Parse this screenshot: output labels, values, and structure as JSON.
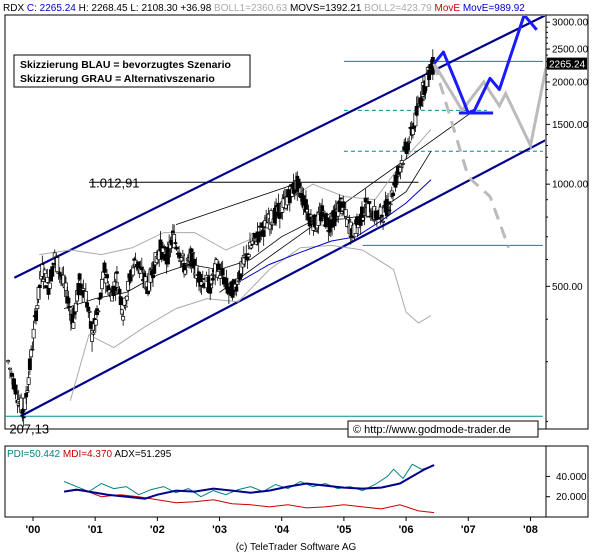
{
  "header": [
    {
      "text": "RDX",
      "color": "#000000"
    },
    {
      "text": "C: 2265.24",
      "color": "#0000cc"
    },
    {
      "text": "H: 2268.45",
      "color": "#000000"
    },
    {
      "text": "L: 2108.30",
      "color": "#000000"
    },
    {
      "text": "+36.98",
      "color": "#000000"
    },
    {
      "text": "BOLL1=2360.63",
      "color": "#aaaaaa"
    },
    {
      "text": "MOVS=1392.21",
      "color": "#000000"
    },
    {
      "text": "BOLL2=423.79",
      "color": "#aaaaaa"
    },
    {
      "text": "MovE",
      "color": "#cc0000"
    },
    {
      "text": "MovE=989.92",
      "color": "#0000cc"
    }
  ],
  "legend_box": {
    "line1": "Skizzierung BLAU = bevorzugtes Szenario",
    "line2": "Skizzierung GRAU = Alternativszenario"
  },
  "watermark": "© http://www.godmode-trader.de",
  "footer": "(c) TeleTrader Software AG",
  "indicator_header": [
    {
      "text": "PDI=50.442",
      "color": "#008080"
    },
    {
      "text": "MDI=4.370",
      "color": "#cc0000"
    },
    {
      "text": "ADX=51.295",
      "color": "#000000"
    }
  ],
  "colors": {
    "channel": "#00008b",
    "scenario_blue": "#1a1aff",
    "scenario_gray": "#bbbbbb",
    "teal_line": "#008b8b",
    "boll": "#aaaaaa",
    "mov_blue": "#0000cc",
    "pdi": "#008080",
    "mdi": "#cc0000",
    "adx": "#00008b"
  },
  "chart_data": [
    {
      "type": "candlestick",
      "title": "RDX",
      "y_scale": "log",
      "ylim": [
        190,
        3150
      ],
      "x_range": [
        1999.55,
        2008.25
      ],
      "y_ticks": [
        {
          "v": 3000,
          "label": "3000.00"
        },
        {
          "v": 2500,
          "label": "2500.00"
        },
        {
          "v": 2000,
          "label": "2000.00"
        },
        {
          "v": 1500,
          "label": "1500.00"
        },
        {
          "v": 1000,
          "label": "1000.00"
        },
        {
          "v": 500,
          "label": "500.00"
        }
      ],
      "x_ticks": [
        {
          "v": 2000,
          "label": "'00"
        },
        {
          "v": 2001,
          "label": "'01"
        },
        {
          "v": 2002,
          "label": "'02"
        },
        {
          "v": 2003,
          "label": "'03"
        },
        {
          "v": 2004,
          "label": "'04"
        },
        {
          "v": 2005,
          "label": "'05"
        },
        {
          "v": 2006,
          "label": "'06"
        },
        {
          "v": 2007,
          "label": "'07"
        },
        {
          "v": 2008,
          "label": "'08"
        }
      ],
      "last_price_label": "2265.24",
      "annotations": [
        {
          "text": "1.012,91",
          "x": 2000.9,
          "y": 1012.91
        },
        {
          "text": "207,13",
          "x": 1999.62,
          "y": 207.13
        }
      ],
      "price_path": [
        [
          1999.6,
          300
        ],
        [
          1999.75,
          240
        ],
        [
          1999.85,
          210
        ],
        [
          1999.95,
          290
        ],
        [
          2000.05,
          420
        ],
        [
          2000.15,
          560
        ],
        [
          2000.25,
          500
        ],
        [
          2000.35,
          610
        ],
        [
          2000.45,
          540
        ],
        [
          2000.55,
          470
        ],
        [
          2000.65,
          390
        ],
        [
          2000.75,
          520
        ],
        [
          2000.85,
          470
        ],
        [
          2000.95,
          360
        ],
        [
          2001.05,
          420
        ],
        [
          2001.15,
          560
        ],
        [
          2001.25,
          470
        ],
        [
          2001.35,
          530
        ],
        [
          2001.45,
          420
        ],
        [
          2001.55,
          520
        ],
        [
          2001.65,
          600
        ],
        [
          2001.75,
          540
        ],
        [
          2001.85,
          500
        ],
        [
          2001.95,
          580
        ],
        [
          2002.05,
          650
        ],
        [
          2002.15,
          600
        ],
        [
          2002.25,
          700
        ],
        [
          2002.35,
          640
        ],
        [
          2002.45,
          560
        ],
        [
          2002.55,
          610
        ],
        [
          2002.65,
          540
        ],
        [
          2002.75,
          520
        ],
        [
          2002.85,
          500
        ],
        [
          2002.95,
          570
        ],
        [
          2003.05,
          540
        ],
        [
          2003.15,
          480
        ],
        [
          2003.25,
          500
        ],
        [
          2003.35,
          560
        ],
        [
          2003.45,
          620
        ],
        [
          2003.55,
          680
        ],
        [
          2003.65,
          720
        ],
        [
          2003.75,
          760
        ],
        [
          2003.85,
          800
        ],
        [
          2003.95,
          830
        ],
        [
          2004.05,
          880
        ],
        [
          2004.15,
          950
        ],
        [
          2004.25,
          1000
        ],
        [
          2004.35,
          900
        ],
        [
          2004.45,
          800
        ],
        [
          2004.55,
          760
        ],
        [
          2004.65,
          820
        ],
        [
          2004.75,
          760
        ],
        [
          2004.85,
          800
        ],
        [
          2004.95,
          880
        ],
        [
          2005.05,
          780
        ],
        [
          2005.15,
          720
        ],
        [
          2005.25,
          780
        ],
        [
          2005.35,
          860
        ],
        [
          2005.45,
          830
        ],
        [
          2005.55,
          800
        ],
        [
          2005.65,
          830
        ],
        [
          2005.75,
          900
        ],
        [
          2005.85,
          1060
        ],
        [
          2005.95,
          1200
        ],
        [
          2006.05,
          1350
        ],
        [
          2006.15,
          1550
        ],
        [
          2006.25,
          1850
        ],
        [
          2006.35,
          2100
        ],
        [
          2006.45,
          2265.24
        ]
      ],
      "blue_scenario": [
        [
          2006.45,
          2265.24
        ],
        [
          2006.6,
          2450
        ],
        [
          2006.8,
          2000
        ],
        [
          2007.0,
          1620
        ],
        [
          2007.1,
          1650
        ],
        [
          2007.35,
          2050
        ],
        [
          2007.5,
          1900
        ],
        [
          2007.9,
          3150
        ],
        [
          2008.1,
          2850
        ]
      ],
      "blue_scenario_tail": [
        [
          2006.85,
          1620
        ],
        [
          2007.4,
          1620
        ]
      ],
      "gray_scenario_solid": [
        [
          2006.45,
          2265.24
        ],
        [
          2006.9,
          1650
        ],
        [
          2007.25,
          2000
        ],
        [
          2007.5,
          1700
        ],
        [
          2007.6,
          1850
        ],
        [
          2008.0,
          1300
        ],
        [
          2008.25,
          2200
        ]
      ],
      "gray_scenario_dashed": [
        [
          2006.45,
          2265.24
        ],
        [
          2007.0,
          1050
        ],
        [
          2007.35,
          920
        ],
        [
          2007.65,
          650
        ]
      ],
      "channel_lines": [
        {
          "from": [
            1999.7,
            530
          ],
          "to": [
            2008.25,
            3150
          ]
        },
        {
          "from": [
            1999.8,
            207.13
          ],
          "to": [
            2008.25,
            1350
          ]
        },
        {
          "from": [
            2002.3,
            760
          ],
          "to": [
            2004.3,
            1012.91
          ]
        },
        {
          "from": [
            2003.0,
            480
          ],
          "to": [
            2007.1,
            1650
          ]
        }
      ],
      "horizontal_lines": [
        {
          "y": 1012.91,
          "x1": 2000.9,
          "x2": 2006.2,
          "style": "solid",
          "color": "#000000"
        },
        {
          "y": 207.13,
          "x1": 1999.55,
          "x2": 2008.2,
          "style": "solid",
          "color": "#008b8b"
        },
        {
          "y": 2300,
          "x1": 2005.0,
          "x2": 2008.2,
          "style": "solid",
          "color": "#008b8b"
        },
        {
          "y": 1650,
          "x1": 2005.0,
          "x2": 2007.3,
          "style": "dashed",
          "color": "#008b8b"
        },
        {
          "y": 1250,
          "x1": 2005.0,
          "x2": 2008.2,
          "style": "dashed",
          "color": "#008b8b"
        },
        {
          "y": 660,
          "x1": 2005.3,
          "x2": 2008.2,
          "style": "solid",
          "color": "#008b8b"
        }
      ],
      "boll_upper": [
        [
          2000.1,
          620
        ],
        [
          2000.6,
          640
        ],
        [
          2001.1,
          620
        ],
        [
          2001.6,
          650
        ],
        [
          2002.1,
          720
        ],
        [
          2002.6,
          720
        ],
        [
          2003.1,
          640
        ],
        [
          2003.6,
          700
        ],
        [
          2004.1,
          900
        ],
        [
          2004.5,
          1000
        ],
        [
          2005.0,
          920
        ],
        [
          2005.5,
          900
        ],
        [
          2006.0,
          1200
        ],
        [
          2006.4,
          1450
        ]
      ],
      "boll_lower": [
        [
          2000.6,
          230
        ],
        [
          2000.9,
          360
        ],
        [
          2001.3,
          330
        ],
        [
          2001.8,
          380
        ],
        [
          2002.3,
          430
        ],
        [
          2002.8,
          460
        ],
        [
          2003.3,
          450
        ],
        [
          2003.8,
          560
        ],
        [
          2004.3,
          650
        ],
        [
          2004.8,
          660
        ],
        [
          2005.3,
          640
        ],
        [
          2005.8,
          560
        ],
        [
          2006.0,
          420
        ],
        [
          2006.2,
          390
        ],
        [
          2006.4,
          410
        ]
      ],
      "movs": [
        [
          2000.5,
          430
        ],
        [
          2001.0,
          460
        ],
        [
          2001.5,
          480
        ],
        [
          2002.0,
          540
        ],
        [
          2002.5,
          580
        ],
        [
          2003.0,
          560
        ],
        [
          2003.5,
          600
        ],
        [
          2004.0,
          700
        ],
        [
          2004.5,
          780
        ],
        [
          2005.0,
          790
        ],
        [
          2005.5,
          820
        ],
        [
          2006.0,
          950
        ],
        [
          2006.4,
          1250
        ]
      ],
      "move_blue": [
        [
          2003.35,
          520
        ],
        [
          2003.8,
          580
        ],
        [
          2004.3,
          630
        ],
        [
          2004.8,
          680
        ],
        [
          2005.2,
          700
        ],
        [
          2005.6,
          780
        ],
        [
          2006.0,
          880
        ],
        [
          2006.4,
          1030
        ]
      ]
    },
    {
      "type": "line",
      "title": "DMI",
      "ylim": [
        0,
        70
      ],
      "y_ticks": [
        {
          "v": 40,
          "label": "40.000"
        },
        {
          "v": 20,
          "label": "20.000"
        }
      ],
      "series": [
        {
          "name": "PDI",
          "color": "#008080",
          "points": [
            [
              2000.5,
              35
            ],
            [
              2000.7,
              30
            ],
            [
              2000.9,
              25
            ],
            [
              2001.1,
              33
            ],
            [
              2001.3,
              28
            ],
            [
              2001.5,
              30
            ],
            [
              2001.7,
              22
            ],
            [
              2001.9,
              27
            ],
            [
              2002.1,
              30
            ],
            [
              2002.3,
              24
            ],
            [
              2002.5,
              28
            ],
            [
              2002.7,
              20
            ],
            [
              2002.9,
              26
            ],
            [
              2003.1,
              22
            ],
            [
              2003.3,
              27
            ],
            [
              2003.5,
              30
            ],
            [
              2003.7,
              25
            ],
            [
              2003.9,
              32
            ],
            [
              2004.1,
              28
            ],
            [
              2004.3,
              35
            ],
            [
              2004.5,
              30
            ],
            [
              2004.7,
              33
            ],
            [
              2004.9,
              28
            ],
            [
              2005.1,
              30
            ],
            [
              2005.3,
              26
            ],
            [
              2005.5,
              32
            ],
            [
              2005.7,
              40
            ],
            [
              2005.8,
              47
            ],
            [
              2005.95,
              38
            ],
            [
              2006.1,
              52
            ],
            [
              2006.25,
              47
            ],
            [
              2006.45,
              50.442
            ]
          ]
        },
        {
          "name": "MDI",
          "color": "#cc0000",
          "points": [
            [
              2000.5,
              25
            ],
            [
              2000.8,
              27
            ],
            [
              2001.1,
              20
            ],
            [
              2001.4,
              22
            ],
            [
              2001.7,
              20
            ],
            [
              2002.0,
              17
            ],
            [
              2002.3,
              14
            ],
            [
              2002.6,
              15
            ],
            [
              2002.9,
              17
            ],
            [
              2003.2,
              13
            ],
            [
              2003.5,
              12
            ],
            [
              2003.8,
              10
            ],
            [
              2004.1,
              12
            ],
            [
              2004.4,
              9
            ],
            [
              2004.7,
              10
            ],
            [
              2005.0,
              12
            ],
            [
              2005.3,
              10
            ],
            [
              2005.6,
              8
            ],
            [
              2005.9,
              12
            ],
            [
              2006.2,
              6
            ],
            [
              2006.45,
              4.37
            ]
          ]
        },
        {
          "name": "ADX",
          "color": "#00008b",
          "points": [
            [
              2000.5,
              25
            ],
            [
              2000.7,
              27
            ],
            [
              2000.9,
              25
            ],
            [
              2001.2,
              22
            ],
            [
              2001.5,
              20
            ],
            [
              2001.8,
              18
            ],
            [
              2002.0,
              22
            ],
            [
              2002.3,
              26
            ],
            [
              2002.6,
              25
            ],
            [
              2002.9,
              28
            ],
            [
              2003.2,
              26
            ],
            [
              2003.5,
              24
            ],
            [
              2003.8,
              26
            ],
            [
              2004.1,
              30
            ],
            [
              2004.4,
              33
            ],
            [
              2004.7,
              31
            ],
            [
              2005.0,
              29
            ],
            [
              2005.3,
              28
            ],
            [
              2005.6,
              29
            ],
            [
              2005.9,
              33
            ],
            [
              2006.1,
              40
            ],
            [
              2006.3,
              47
            ],
            [
              2006.45,
              51.295
            ]
          ]
        }
      ]
    }
  ]
}
